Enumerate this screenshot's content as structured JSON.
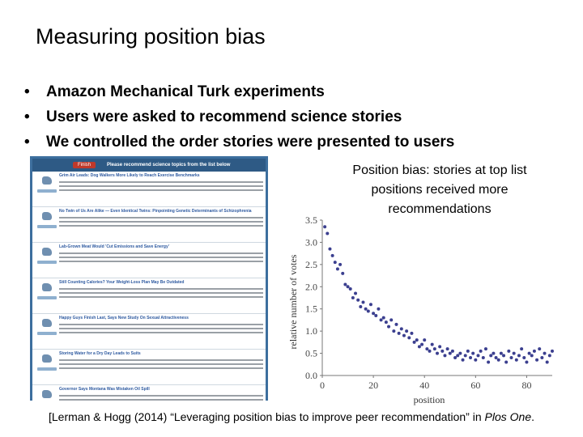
{
  "slide": {
    "title": "Measuring position bias",
    "bullets": [
      "Amazon Mechanical Turk experiments",
      "Users were asked to recommend science stories",
      "We controlled the order stories were presented to users"
    ],
    "caption_lines": [
      "Position bias: stories at top list",
      "positions received more",
      "recommendations"
    ],
    "citation_prefix": "[Lerman & Hogg (2014) “Leveraging position bias to improve peer recommendation” in ",
    "citation_journal": "Plos One",
    "citation_suffix": "."
  },
  "screenshot": {
    "button": "Finish",
    "header": "Please recommend science topics from the list below",
    "stories": [
      "Grim Air Leads: Dog Walkers More Likely to Reach Exercise Benchmarks",
      "No Twin of Us Are Alike — Even Identical Twins: Pinpointing Genetic Determinants of Schizophrenia",
      "Lab-Grown Meat Would 'Cut Emissions and Save Energy'",
      "Still Counting Calories? Your Weight-Loss Plan May Be Outdated",
      "Happy Guys Finish Last, Says New Study On Sexual Attractiveness",
      "Storing Water for a Dry Day Leads to Suits",
      "Governor Says Montana Was Mistaken Oil Spill"
    ]
  },
  "chart_data": {
    "type": "scatter",
    "xlabel": "position",
    "ylabel": "relative number of votes",
    "xlim": [
      0,
      90
    ],
    "ylim": [
      0,
      3.5
    ],
    "xticks": [
      "0",
      "20",
      "40",
      "60",
      "80"
    ],
    "yticks": [
      "0.0",
      "0.5",
      "1.0",
      "1.5",
      "2.0",
      "2.5",
      "3.0",
      "3.5"
    ],
    "x": [
      1,
      2,
      3,
      4,
      5,
      6,
      7,
      8,
      9,
      10,
      11,
      12,
      13,
      14,
      15,
      16,
      17,
      18,
      19,
      20,
      21,
      22,
      23,
      24,
      25,
      26,
      27,
      28,
      29,
      30,
      31,
      32,
      33,
      34,
      35,
      36,
      37,
      38,
      39,
      40,
      41,
      42,
      43,
      44,
      45,
      46,
      47,
      48,
      49,
      50,
      51,
      52,
      53,
      54,
      55,
      56,
      57,
      58,
      59,
      60,
      61,
      62,
      63,
      64,
      65,
      66,
      67,
      68,
      69,
      70,
      71,
      72,
      73,
      74,
      75,
      76,
      77,
      78,
      79,
      80,
      81,
      82,
      83,
      84,
      85,
      86,
      87,
      88,
      89,
      90
    ],
    "y": [
      3.35,
      3.2,
      2.85,
      2.7,
      2.55,
      2.4,
      2.5,
      2.3,
      2.05,
      2.0,
      1.95,
      1.75,
      1.85,
      1.7,
      1.55,
      1.65,
      1.5,
      1.45,
      1.6,
      1.4,
      1.35,
      1.5,
      1.25,
      1.3,
      1.2,
      1.1,
      1.25,
      1.0,
      1.15,
      0.95,
      1.05,
      0.9,
      1.0,
      0.85,
      0.95,
      0.75,
      0.8,
      0.65,
      0.7,
      0.8,
      0.6,
      0.55,
      0.7,
      0.6,
      0.5,
      0.65,
      0.55,
      0.45,
      0.6,
      0.5,
      0.55,
      0.4,
      0.45,
      0.5,
      0.35,
      0.45,
      0.55,
      0.4,
      0.5,
      0.35,
      0.45,
      0.55,
      0.4,
      0.6,
      0.3,
      0.45,
      0.5,
      0.4,
      0.35,
      0.5,
      0.45,
      0.3,
      0.55,
      0.4,
      0.5,
      0.35,
      0.45,
      0.6,
      0.4,
      0.3,
      0.5,
      0.45,
      0.55,
      0.35,
      0.6,
      0.4,
      0.5,
      0.3,
      0.45,
      0.55
    ],
    "color": "#3b3f8f",
    "grid": false
  }
}
